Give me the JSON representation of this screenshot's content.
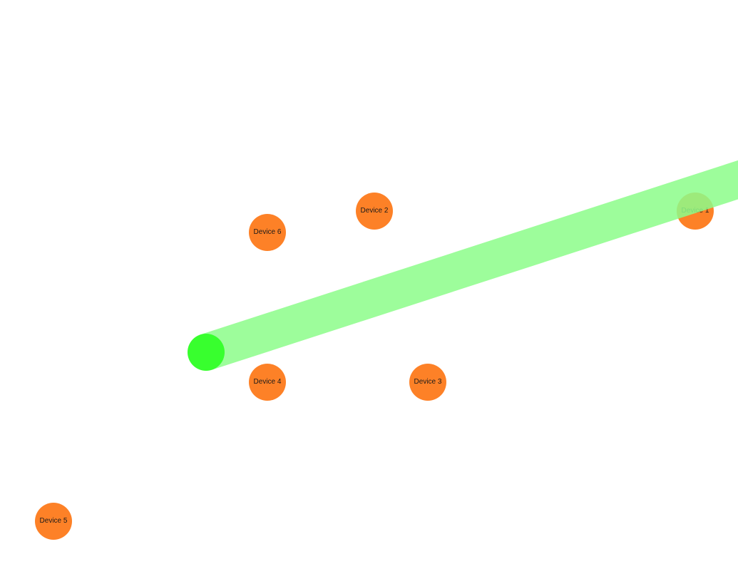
{
  "colors": {
    "device_fill": "#fd8127",
    "source_fill": "#38ff2e",
    "beam_fill": "#8dfd8a",
    "background": "#ffffff"
  },
  "devices": [
    {
      "label": "Device 1"
    },
    {
      "label": "Device 2"
    },
    {
      "label": "Device 3"
    },
    {
      "label": "Device 4"
    },
    {
      "label": "Device 5"
    },
    {
      "label": "Device 6"
    }
  ]
}
